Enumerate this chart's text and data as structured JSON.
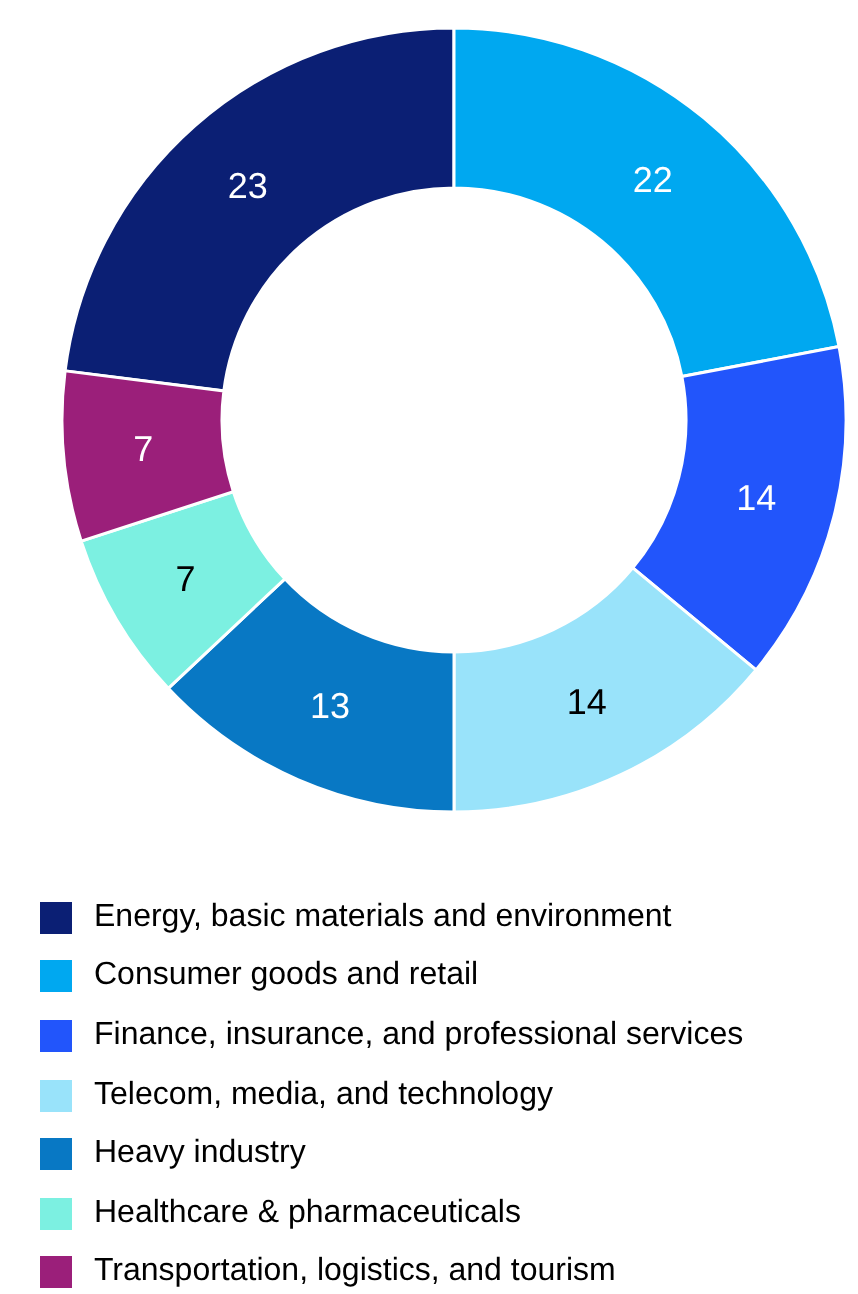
{
  "chart_data": {
    "type": "donut",
    "categories": [
      "Energy, basic materials and environment",
      "Consumer goods and retail",
      "Finance, insurance, and professional services",
      "Telecom, media, and technology",
      "Heavy industry",
      "Healthcare & pharmaceuticals",
      "Transportation, logistics, and tourism"
    ],
    "values": [
      23,
      22,
      14,
      14,
      13,
      7,
      7
    ],
    "colors": [
      "#0b1f74",
      "#00a8f0",
      "#2255fb",
      "#99e3fa",
      "#0878c4",
      "#7cf0e1",
      "#9b1f7a"
    ],
    "data_labels": true,
    "legend": "bottom"
  }
}
